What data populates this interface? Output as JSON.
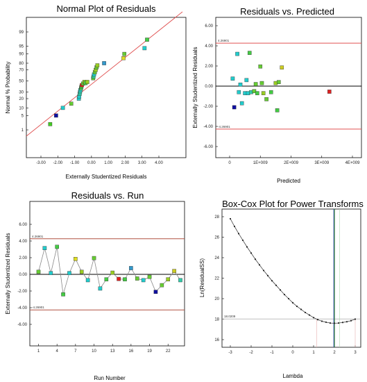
{
  "chart_data": [
    {
      "type": "scatter",
      "title": "Normal Plot of Residuals",
      "xlabel": "Externally Studentized Residuals",
      "ylabel": "Normal % Probability",
      "xlim": [
        -3.0,
        4.0
      ],
      "xticks": [
        "-3.00",
        "-2.00",
        "-1.00",
        "0.00",
        "1.00",
        "2.00",
        "3.00",
        "4.00"
      ],
      "yticks": [
        "1",
        "5",
        "10",
        "20",
        "30",
        "50",
        "70",
        "80",
        "90",
        "95",
        "99"
      ],
      "reference_line": true,
      "colors": {
        "line": "#e05050",
        "high": "#e02020",
        "low": "#1010a0"
      },
      "points": [
        {
          "x": -2.45,
          "y": 2,
          "c": "#44cc22"
        },
        {
          "x": -2.1,
          "y": 5,
          "c": "#1010a0"
        },
        {
          "x": -1.7,
          "y": 10,
          "c": "#22cccc"
        },
        {
          "x": -1.2,
          "y": 14,
          "c": "#66cc33"
        },
        {
          "x": -0.75,
          "y": 20,
          "c": "#22cccc"
        },
        {
          "x": -0.73,
          "y": 23,
          "c": "#22cccc"
        },
        {
          "x": -0.7,
          "y": 27,
          "c": "#33ccaa"
        },
        {
          "x": -0.68,
          "y": 30,
          "c": "#33ccaa"
        },
        {
          "x": -0.66,
          "y": 33,
          "c": "#22cccc"
        },
        {
          "x": -0.62,
          "y": 36,
          "c": "#44cc66"
        },
        {
          "x": -0.6,
          "y": 39,
          "c": "#44cc44"
        },
        {
          "x": -0.57,
          "y": 42,
          "c": "#e02020"
        },
        {
          "x": -0.5,
          "y": 45,
          "c": "#66cc33"
        },
        {
          "x": -0.42,
          "y": 48,
          "c": "#99cc22"
        },
        {
          "x": -0.35,
          "y": 46,
          "c": "#44cc44"
        },
        {
          "x": -0.25,
          "y": 48,
          "c": "#99cc22"
        },
        {
          "x": 0.1,
          "y": 55,
          "c": "#66cc33"
        },
        {
          "x": 0.12,
          "y": 58,
          "c": "#33cc88"
        },
        {
          "x": 0.15,
          "y": 62,
          "c": "#22cccc"
        },
        {
          "x": 0.2,
          "y": 66,
          "c": "#66cc33"
        },
        {
          "x": 0.25,
          "y": 70,
          "c": "#99cc22"
        },
        {
          "x": 0.3,
          "y": 74,
          "c": "#66cc33"
        },
        {
          "x": 0.35,
          "y": 77,
          "c": "#99cc22"
        },
        {
          "x": 0.75,
          "y": 80,
          "c": "#3399cc"
        },
        {
          "x": 1.9,
          "y": 86,
          "c": "#dddd22"
        },
        {
          "x": 1.95,
          "y": 90,
          "c": "#66cc33"
        },
        {
          "x": 3.15,
          "y": 94,
          "c": "#22cccc"
        },
        {
          "x": 3.3,
          "y": 97.5,
          "c": "#44cc44"
        }
      ]
    },
    {
      "type": "scatter",
      "title": "Residuals vs. Predicted",
      "xlabel": "Predicted",
      "ylabel": "Externally Studentized Residuals",
      "xlim": [
        -0.5,
        4.0
      ],
      "ylim": [
        -6.0,
        6.0
      ],
      "xticks": [
        "0",
        "1E+009",
        "2E+009",
        "3E+009",
        "4E+009"
      ],
      "yticks": [
        "-6.00",
        "-4.00",
        "-2.00",
        "0.00",
        "2.00",
        "4.00",
        "6.00"
      ],
      "limit": 4.26901,
      "limit_label_upper": "4.26901",
      "limit_label_lower": "-4.26901",
      "points": [
        {
          "x": 0.1,
          "y": 0.75,
          "c": "#22cccc"
        },
        {
          "x": 0.15,
          "y": -2.1,
          "c": "#1010a0"
        },
        {
          "x": 0.25,
          "y": 3.2,
          "c": "#22cccc"
        },
        {
          "x": 0.3,
          "y": -0.6,
          "c": "#22cccc"
        },
        {
          "x": 0.35,
          "y": 0.15,
          "c": "#22cccc"
        },
        {
          "x": 0.4,
          "y": -1.7,
          "c": "#22cccc"
        },
        {
          "x": 0.5,
          "y": -0.7,
          "c": "#22cccc"
        },
        {
          "x": 0.55,
          "y": 0.6,
          "c": "#22cccc"
        },
        {
          "x": 0.6,
          "y": -0.7,
          "c": "#22cccc"
        },
        {
          "x": 0.65,
          "y": 3.3,
          "c": "#44cc44"
        },
        {
          "x": 0.7,
          "y": -0.6,
          "c": "#33ccaa"
        },
        {
          "x": 0.8,
          "y": -0.5,
          "c": "#66cc33"
        },
        {
          "x": 0.85,
          "y": 0.2,
          "c": "#66cc33"
        },
        {
          "x": 0.9,
          "y": -0.7,
          "c": "#44cc44"
        },
        {
          "x": 1.0,
          "y": 1.95,
          "c": "#66cc33"
        },
        {
          "x": 1.05,
          "y": 0.3,
          "c": "#66cc33"
        },
        {
          "x": 1.1,
          "y": -0.7,
          "c": "#99cc22"
        },
        {
          "x": 1.2,
          "y": -1.3,
          "c": "#66cc33"
        },
        {
          "x": 1.35,
          "y": -0.6,
          "c": "#44cc44"
        },
        {
          "x": 1.5,
          "y": 0.3,
          "c": "#99cc22"
        },
        {
          "x": 1.55,
          "y": -2.4,
          "c": "#44cc44"
        },
        {
          "x": 1.6,
          "y": 0.4,
          "c": "#66cc33"
        },
        {
          "x": 1.7,
          "y": 1.85,
          "c": "#cccc22"
        },
        {
          "x": 3.25,
          "y": -0.55,
          "c": "#e02020"
        }
      ]
    },
    {
      "type": "line",
      "title": "Residuals vs. Run",
      "xlabel": "Run Number",
      "ylabel": "Externally Studentized Residuals",
      "xlim": [
        0,
        25
      ],
      "ylim": [
        -6.0,
        6.0
      ],
      "xticks": [
        "1",
        "4",
        "7",
        "10",
        "13",
        "16",
        "19",
        "22"
      ],
      "yticks": [
        "-6.00",
        "-4.00",
        "-2.00",
        "0.00",
        "2.00",
        "4.00",
        "6.00"
      ],
      "limit": 4.26901,
      "limit_label_upper": "4.26901",
      "limit_label_lower": "-4.26901",
      "points": [
        {
          "x": 1,
          "y": 0.3,
          "c": "#66cc33"
        },
        {
          "x": 2,
          "y": 3.15,
          "c": "#22cccc"
        },
        {
          "x": 3,
          "y": 0.15,
          "c": "#22cccc"
        },
        {
          "x": 4,
          "y": 3.3,
          "c": "#44cc44"
        },
        {
          "x": 5,
          "y": -2.4,
          "c": "#44cc44"
        },
        {
          "x": 6,
          "y": 0.15,
          "c": "#22cccc"
        },
        {
          "x": 7,
          "y": 1.85,
          "c": "#dddd22"
        },
        {
          "x": 8,
          "y": 0.3,
          "c": "#99cc22"
        },
        {
          "x": 9,
          "y": -0.7,
          "c": "#22cccc"
        },
        {
          "x": 10,
          "y": 1.95,
          "c": "#66cc33"
        },
        {
          "x": 11,
          "y": -1.7,
          "c": "#22cccc"
        },
        {
          "x": 12,
          "y": -0.6,
          "c": "#44cc44"
        },
        {
          "x": 13,
          "y": 0.2,
          "c": "#99cc22"
        },
        {
          "x": 14,
          "y": -0.55,
          "c": "#e02020"
        },
        {
          "x": 15,
          "y": -0.6,
          "c": "#44cc44"
        },
        {
          "x": 16,
          "y": 0.75,
          "c": "#3399cc"
        },
        {
          "x": 17,
          "y": -0.5,
          "c": "#66cc33"
        },
        {
          "x": 18,
          "y": -0.7,
          "c": "#22cccc"
        },
        {
          "x": 19,
          "y": -0.3,
          "c": "#66cc33"
        },
        {
          "x": 20,
          "y": -2.1,
          "c": "#1010a0"
        },
        {
          "x": 21,
          "y": -1.3,
          "c": "#66cc33"
        },
        {
          "x": 22,
          "y": -0.6,
          "c": "#99cc22"
        },
        {
          "x": 23,
          "y": 0.4,
          "c": "#cccc22"
        },
        {
          "x": 24,
          "y": -0.7,
          "c": "#33ccaa"
        }
      ]
    },
    {
      "type": "line",
      "title": "Box-Cox Plot for Power Transforms",
      "xlabel": "Lambda",
      "ylabel": "Ln(ResidualSS)",
      "xlim": [
        -3.3,
        3.3
      ],
      "ylim": [
        15,
        29
      ],
      "xticks": [
        "-3",
        "-2",
        "-1",
        "0",
        "1",
        "2",
        "3"
      ],
      "yticks": [
        "16",
        "18",
        "20",
        "22",
        "24",
        "26",
        "28"
      ],
      "min_line": 18.0209,
      "min_line_label": "18.0209",
      "current_lambda": 2,
      "ci": [
        1.15,
        2.25
      ],
      "points": [
        {
          "x": -3.0,
          "y": 27.8
        },
        {
          "x": -2.8,
          "y": 27.05
        },
        {
          "x": -2.6,
          "y": 26.35
        },
        {
          "x": -2.4,
          "y": 25.7
        },
        {
          "x": -2.2,
          "y": 25.05
        },
        {
          "x": -2.0,
          "y": 24.45
        },
        {
          "x": -1.8,
          "y": 23.85
        },
        {
          "x": -1.6,
          "y": 23.3
        },
        {
          "x": -1.4,
          "y": 22.75
        },
        {
          "x": -1.2,
          "y": 22.25
        },
        {
          "x": -1.0,
          "y": 21.75
        },
        {
          "x": -0.8,
          "y": 21.3
        },
        {
          "x": -0.6,
          "y": 20.85
        },
        {
          "x": -0.4,
          "y": 20.4
        },
        {
          "x": -0.2,
          "y": 20.0
        },
        {
          "x": 0.0,
          "y": 19.6
        },
        {
          "x": 0.2,
          "y": 19.25
        },
        {
          "x": 0.4,
          "y": 18.95
        },
        {
          "x": 0.6,
          "y": 18.65
        },
        {
          "x": 0.8,
          "y": 18.4
        },
        {
          "x": 1.0,
          "y": 18.15
        },
        {
          "x": 1.2,
          "y": 17.95
        },
        {
          "x": 1.4,
          "y": 17.8
        },
        {
          "x": 1.6,
          "y": 17.7
        },
        {
          "x": 1.8,
          "y": 17.62
        },
        {
          "x": 2.0,
          "y": 17.6
        },
        {
          "x": 2.2,
          "y": 17.62
        },
        {
          "x": 2.4,
          "y": 17.68
        },
        {
          "x": 2.6,
          "y": 17.75
        },
        {
          "x": 2.8,
          "y": 17.85
        },
        {
          "x": 3.0,
          "y": 18.0
        }
      ]
    }
  ]
}
